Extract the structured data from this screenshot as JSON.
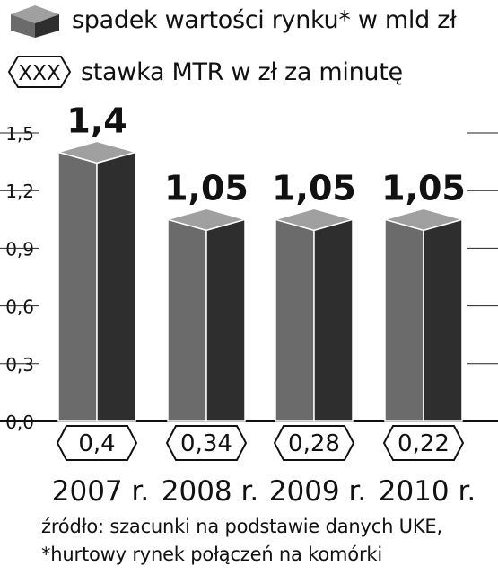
{
  "legend": {
    "market": {
      "label": "spadek wartości rynku* w mld zł",
      "icon": "gray-box-icon"
    },
    "mtr": {
      "label": "stawka MTR w zł za minutę",
      "icon": "hexagon-label-icon",
      "symbol": "XXX"
    }
  },
  "colors": {
    "bar_front": "#6b6b6b",
    "bar_side": "#2e2e2e",
    "bar_top": "#a0a0a0",
    "axis": "#111111",
    "grid": "#222222"
  },
  "chart_data": {
    "type": "bar",
    "categories": [
      "2007 r.",
      "2008 r.",
      "2009 r.",
      "2010 r."
    ],
    "series": [
      {
        "name": "spadek wartości rynku* w mld zł",
        "values": [
          1.4,
          1.05,
          1.05,
          1.05
        ],
        "labels": [
          "1,4",
          "1,05",
          "1,05",
          "1,05"
        ]
      },
      {
        "name": "stawka MTR w zł za minutę",
        "values": [
          0.4,
          0.34,
          0.28,
          0.22
        ],
        "labels": [
          "0,4",
          "0,34",
          "0,28",
          "0,22"
        ]
      }
    ],
    "yticks": [
      "0,0",
      "0,3",
      "0,6",
      "0,9",
      "1,2",
      "1,5"
    ],
    "ylim": [
      0,
      1.5
    ],
    "grid": true
  },
  "footer": {
    "source": "źródło: szacunki na podstawie danych UKE,",
    "note": "*hurtowy rynek połączeń na komórki"
  }
}
